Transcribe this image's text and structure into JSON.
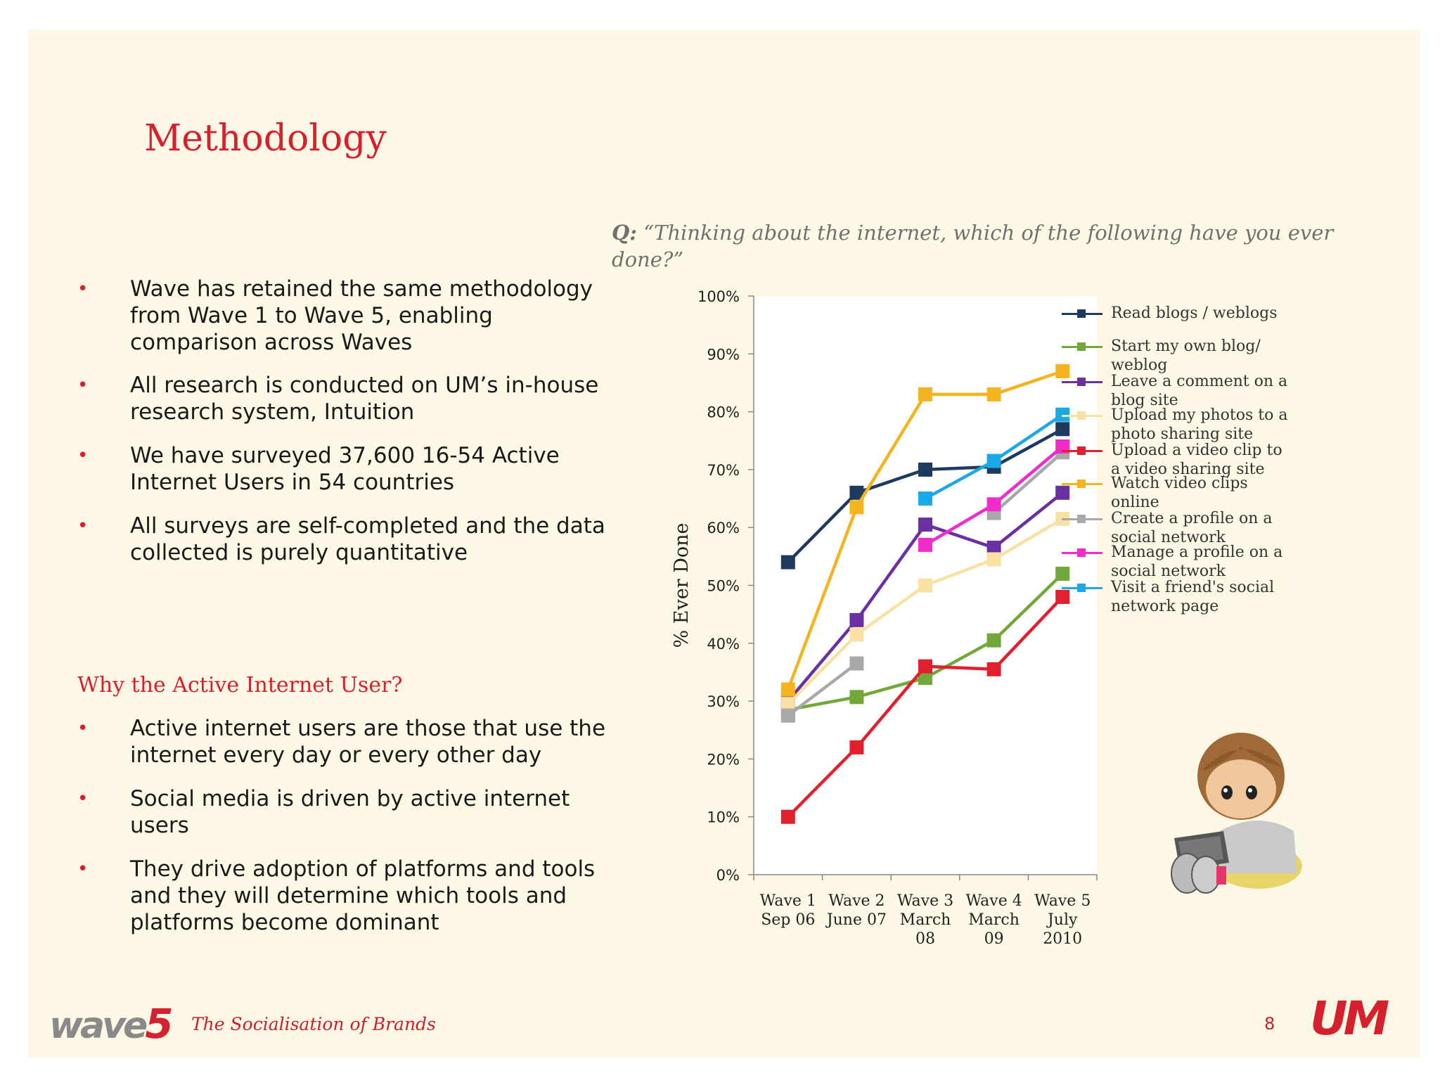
{
  "title": "Methodology",
  "question_prefix": "Q:",
  "question": "“Thinking about the internet, which of the following have you ever done?”",
  "bullets_top": [
    "Wave has retained the same methodology from Wave 1 to Wave 5, enabling comparison across Waves",
    "All research is conducted on UM’s in-house research system, Intuition",
    "We have surveyed 37,600 16-54 Active Internet Users in 54 countries",
    "All surveys are self-completed and the data collected is purely quantitative"
  ],
  "subhead": "Why the Active Internet User?",
  "bullets_bottom": [
    "Active internet users are those that use the internet every day or every other day",
    "Social media is driven by active internet users",
    "They drive adoption of platforms and tools and they will determine which tools and platforms become dominant"
  ],
  "footer": {
    "logo_text": "wave",
    "logo_num": "5",
    "tagline": "The Socialisation of Brands",
    "page_number": "8",
    "brand": "UM"
  },
  "chart_data": {
    "type": "line",
    "ylabel": "% Ever Done",
    "ylim": [
      0,
      100
    ],
    "yticks": [
      "0%",
      "10%",
      "20%",
      "30%",
      "40%",
      "50%",
      "60%",
      "70%",
      "80%",
      "90%",
      "100%"
    ],
    "categories": [
      [
        "Wave 1",
        "Sep 06"
      ],
      [
        "Wave 2",
        "June 07"
      ],
      [
        "Wave 3",
        "March",
        "08"
      ],
      [
        "Wave 4",
        "March",
        "09"
      ],
      [
        "Wave 5",
        "July",
        "2010"
      ]
    ],
    "legend_position": "right",
    "series": [
      {
        "name": "Read blogs / weblogs",
        "color": "#1f3a5f",
        "values": [
          54,
          66,
          70,
          70.5,
          77
        ]
      },
      {
        "name": "Start my own blog/ weblog",
        "color": "#72a83a",
        "values": [
          28.5,
          30.7,
          34,
          40.5,
          52
        ]
      },
      {
        "name": "Leave a comment on a blog site",
        "color": "#6a2fa0",
        "values": [
          30,
          44,
          60.5,
          56.5,
          66
        ]
      },
      {
        "name": "Upload my photos to a photo sharing site",
        "color": "#f8e1a2",
        "values": [
          29.5,
          41.5,
          50,
          54.5,
          61.5
        ]
      },
      {
        "name": "Upload a video clip to a video sharing site",
        "color": "#e1202e",
        "values": [
          10,
          22,
          36,
          35.5,
          48
        ]
      },
      {
        "name": "Watch video clips online",
        "color": "#f4b41f",
        "values": [
          32,
          63.5,
          83,
          83,
          87
        ]
      },
      {
        "name": "Create a profile on a social network",
        "color": "#a8a8a8",
        "values": [
          27.5,
          36.5,
          null,
          62.5,
          73
        ]
      },
      {
        "name": "Manage a profile on a social network",
        "color": "#f02ccb",
        "values": [
          null,
          null,
          57,
          64,
          74
        ]
      },
      {
        "name": "Visit a friend's social network page",
        "color": "#1aa8e6",
        "values": [
          null,
          null,
          65,
          71.5,
          79.5
        ]
      }
    ]
  }
}
